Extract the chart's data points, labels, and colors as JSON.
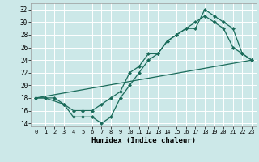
{
  "xlabel": "Humidex (Indice chaleur)",
  "bg_color": "#cce8e8",
  "grid_color": "#ffffff",
  "line_color": "#1a6b5a",
  "xlim": [
    -0.5,
    23.5
  ],
  "ylim": [
    13.5,
    33.0
  ],
  "xticks": [
    0,
    1,
    2,
    3,
    4,
    5,
    6,
    7,
    8,
    9,
    10,
    11,
    12,
    13,
    14,
    15,
    16,
    17,
    18,
    19,
    20,
    21,
    22,
    23
  ],
  "yticks": [
    14,
    16,
    18,
    20,
    22,
    24,
    26,
    28,
    30,
    32
  ],
  "line1_x": [
    0,
    1,
    2,
    3,
    4,
    5,
    6,
    7,
    8,
    9,
    10,
    11,
    12,
    13,
    14,
    15,
    16,
    17,
    18,
    19,
    20,
    21,
    22,
    23
  ],
  "line1_y": [
    18,
    18,
    18,
    17,
    16,
    16,
    16,
    17,
    18,
    19,
    22,
    23,
    25,
    25,
    27,
    28,
    29,
    30,
    31,
    30,
    29,
    26,
    25,
    24
  ],
  "line2_x": [
    0,
    1,
    3,
    4,
    5,
    6,
    7,
    8,
    9,
    10,
    11,
    12,
    13,
    14,
    15,
    16,
    17,
    18,
    19,
    20,
    21,
    22,
    23
  ],
  "line2_y": [
    18,
    18,
    17,
    15,
    15,
    15,
    14,
    15,
    18,
    20,
    22,
    24,
    25,
    27,
    28,
    29,
    29,
    32,
    31,
    30,
    29,
    25,
    24
  ],
  "line3_x": [
    0,
    23
  ],
  "line3_y": [
    18,
    24
  ]
}
